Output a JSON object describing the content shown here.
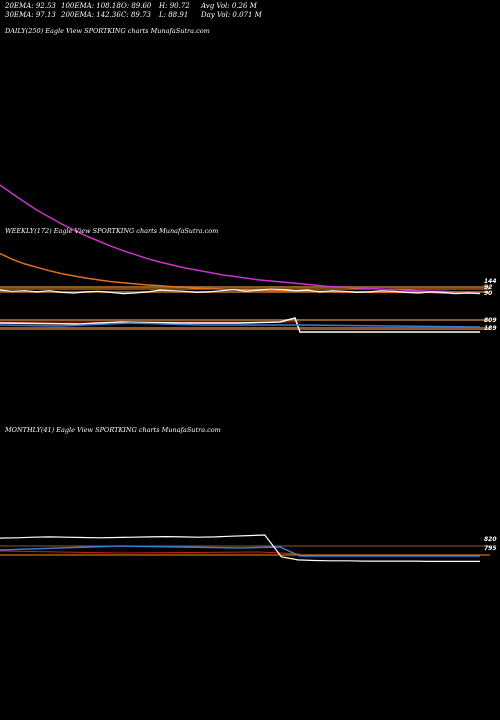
{
  "header": {
    "row1": [
      {
        "id": "ema20",
        "text": "20EMA: 92.53"
      },
      {
        "id": "ema100",
        "text": "100EMA: 108.18"
      },
      {
        "id": "open",
        "text": "O: 89.60"
      },
      {
        "id": "high",
        "text": "H: 90.72"
      },
      {
        "id": "avgvol",
        "text": "Avg Vol: 0.26  M"
      }
    ],
    "row2": [
      {
        "id": "ema30",
        "text": "30EMA: 97.13"
      },
      {
        "id": "ema200",
        "text": "200EMA: 142.36"
      },
      {
        "id": "close",
        "text": "C: 89.73"
      },
      {
        "id": "low",
        "text": "L: 88.91"
      },
      {
        "id": "dayvol",
        "text": "Day Vol: 0.071 M"
      }
    ]
  },
  "panels": {
    "daily": {
      "title": "DAILY(250) Eagle   View  SPORTKING charts MunafaSutra.com"
    },
    "weekly": {
      "title": "WEEKLY(172) Eagle   View  SPORTKING charts MunafaSutra.com",
      "labels": [
        "144",
        "92",
        "90"
      ]
    },
    "weekly_vol": {
      "labels": [
        "809",
        "189"
      ]
    },
    "monthly": {
      "title": "MONTHLY(41) Eagle   View  SPORTKING charts MunafaSutra.com",
      "labels": [
        "820",
        "795"
      ]
    }
  },
  "colors": {
    "price": "#ffffff",
    "ema_long": "#cc33cc",
    "ema_mid": "#e07020",
    "support": "#ff8c00",
    "grid_band": "#8b5a2b",
    "blue": "#3a7bd5",
    "red": "#d02020"
  },
  "chart_data": [
    {
      "type": "line",
      "panel": "weekly",
      "series": [
        {
          "role": "200EMA",
          "values": [
            280,
            265,
            250,
            236,
            224,
            212,
            201,
            191,
            182,
            173,
            165,
            158,
            151,
            145,
            140,
            135,
            131,
            127,
            123,
            120,
            117,
            114,
            112,
            110,
            108,
            106,
            104,
            102,
            101,
            100,
            99,
            98,
            97,
            96,
            95,
            94,
            94,
            93,
            92,
            92
          ]
        },
        {
          "role": "100EMA",
          "values": [
            160,
            150,
            142,
            136,
            130,
            125,
            121,
            117,
            114,
            111,
            109,
            107,
            105,
            104,
            102,
            101,
            100,
            99,
            98,
            97,
            96,
            96,
            95,
            95,
            94,
            94,
            94,
            93,
            93,
            93,
            92,
            92,
            92,
            92,
            92,
            92,
            91,
            91,
            91,
            91
          ]
        },
        {
          "role": "price",
          "values": [
            96,
            94,
            95,
            93,
            95,
            92,
            91,
            93,
            94,
            92,
            90,
            91,
            93,
            96,
            95,
            94,
            92,
            93,
            95,
            97,
            94,
            96,
            98,
            97,
            95,
            96,
            93,
            95,
            94,
            92,
            93,
            95,
            94,
            92,
            91,
            93,
            92,
            90,
            91,
            90
          ]
        }
      ]
    },
    {
      "type": "line",
      "panel": "monthly",
      "series": [
        {
          "role": "price",
          "values": [
            100,
            101,
            103,
            104,
            103,
            102,
            101,
            102,
            103,
            104,
            105,
            104,
            103,
            104,
            106,
            108,
            110,
            40,
            30,
            28,
            27,
            27,
            26,
            26,
            26,
            26,
            25,
            25,
            25,
            25
          ]
        }
      ]
    }
  ]
}
